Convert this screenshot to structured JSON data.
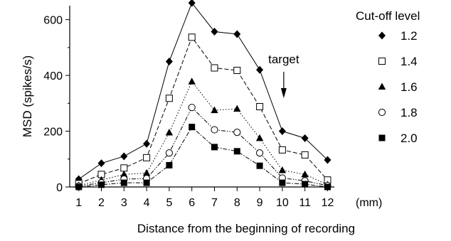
{
  "chart_data": {
    "type": "line",
    "xlabel": "Distance from the beginning of recording",
    "ylabel": "MSD (spikes/s)",
    "x_unit": "(mm)",
    "x": [
      1,
      2,
      3,
      4,
      5,
      6,
      7,
      8,
      9,
      10,
      11,
      12
    ],
    "xlim": [
      0.6,
      12.3
    ],
    "ylim": [
      0,
      650
    ],
    "yticks": [
      0,
      200,
      400,
      600
    ],
    "legend_title": "Cut-off level",
    "legend_position": "right",
    "grid": false,
    "annotation": {
      "text": "target",
      "x": 10
    },
    "series": [
      {
        "name": "1.2",
        "marker": "diamond-filled",
        "dash": "solid",
        "values": [
          28,
          85,
          110,
          155,
          450,
          660,
          557,
          548,
          420,
          200,
          175,
          97
        ]
      },
      {
        "name": "1.4",
        "marker": "square-open",
        "dash": "dashed",
        "values": [
          12,
          45,
          68,
          105,
          318,
          537,
          427,
          418,
          288,
          133,
          115,
          25
        ]
      },
      {
        "name": "1.6",
        "marker": "triangle-filled",
        "dash": "dotted",
        "values": [
          5,
          25,
          45,
          50,
          195,
          378,
          275,
          280,
          175,
          60,
          45,
          8
        ]
      },
      {
        "name": "1.8",
        "marker": "circle-open",
        "dash": "dash-dot-dot",
        "values": [
          3,
          15,
          28,
          30,
          122,
          285,
          205,
          196,
          122,
          32,
          22,
          5
        ]
      },
      {
        "name": "2.0",
        "marker": "square-filled",
        "dash": "dash-dot",
        "values": [
          0,
          8,
          15,
          15,
          78,
          215,
          143,
          128,
          76,
          15,
          10,
          0
        ]
      }
    ]
  }
}
